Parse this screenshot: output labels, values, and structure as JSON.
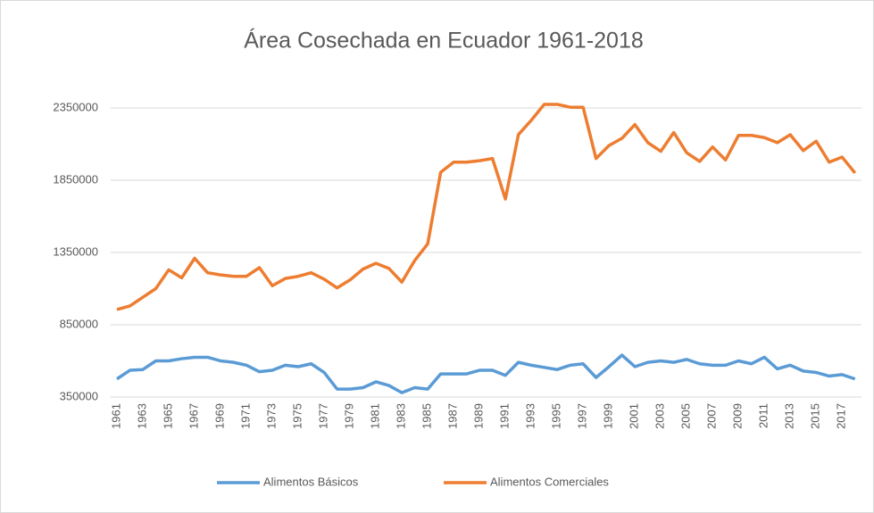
{
  "chart_data": {
    "type": "line",
    "title": "Área Cosechada en Ecuador 1961-2018",
    "categories": [
      "1961",
      null,
      "1963",
      null,
      "1965",
      null,
      "1967",
      null,
      "1969",
      null,
      "1971",
      null,
      "1973",
      null,
      "1975",
      null,
      "1977",
      null,
      "1979",
      null,
      "1981",
      null,
      "1983",
      null,
      "1985",
      null,
      "1987",
      null,
      "1989",
      null,
      "1991",
      null,
      "1993",
      null,
      "1995",
      null,
      "1997",
      null,
      "1999",
      null,
      "2001",
      null,
      "2003",
      null,
      "2005",
      null,
      "2007",
      null,
      "2009",
      null,
      "2011",
      null,
      "2013",
      null,
      "2015",
      null,
      "2017",
      null
    ],
    "series": [
      {
        "name": "Alimentos Básicos",
        "color": "#5b9bd5",
        "values": [
          475000,
          535000,
          540000,
          600000,
          600000,
          615000,
          625000,
          625000,
          600000,
          590000,
          570000,
          525000,
          535000,
          570000,
          560000,
          580000,
          520000,
          405000,
          405000,
          415000,
          455000,
          430000,
          380000,
          415000,
          405000,
          510000,
          510000,
          510000,
          535000,
          535000,
          500000,
          590000,
          570000,
          555000,
          540000,
          570000,
          580000,
          485000,
          560000,
          640000,
          560000,
          590000,
          600000,
          590000,
          610000,
          580000,
          570000,
          570000,
          600000,
          580000,
          625000,
          545000,
          570000,
          530000,
          520000,
          495000,
          505000,
          475000
        ]
      },
      {
        "name": "Alimentos Comerciales",
        "color": "#ed7d31",
        "values": [
          955000,
          980000,
          1040000,
          1100000,
          1230000,
          1175000,
          1310000,
          1210000,
          1195000,
          1185000,
          1185000,
          1245000,
          1120000,
          1170000,
          1185000,
          1210000,
          1165000,
          1105000,
          1160000,
          1235000,
          1275000,
          1240000,
          1145000,
          1295000,
          1410000,
          1905000,
          1975000,
          1975000,
          1985000,
          2000000,
          1720000,
          2165000,
          2265000,
          2375000,
          2375000,
          2355000,
          2355000,
          2000000,
          2090000,
          2140000,
          2235000,
          2110000,
          2050000,
          2180000,
          2040000,
          1980000,
          2080000,
          1990000,
          2160000,
          2160000,
          2145000,
          2110000,
          2165000,
          2055000,
          2120000,
          1975000,
          2010000,
          1900000
        ]
      }
    ],
    "ylim": [
      350000,
      2450000
    ],
    "yticks": [
      350000,
      850000,
      1350000,
      1850000,
      2350000
    ],
    "grid": true,
    "legend": "bottom"
  }
}
